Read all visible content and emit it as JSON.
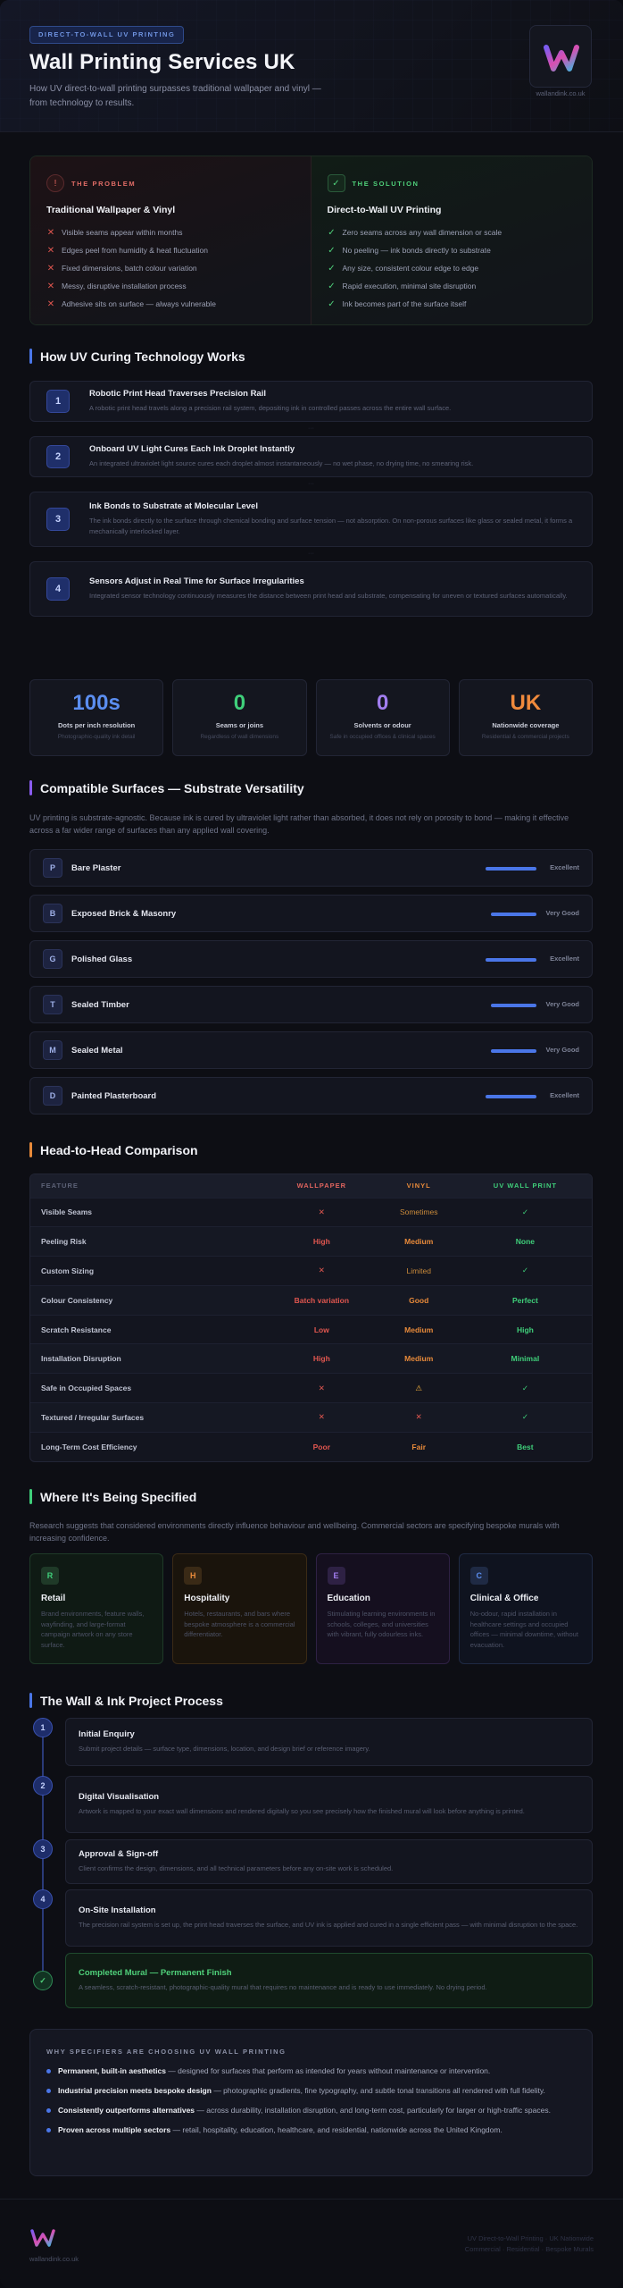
{
  "header": {
    "badge": "DIRECT-TO-WALL UV PRINTING",
    "title": "Wall Printing Services UK",
    "subtitle": "How UV direct-to-wall printing surpasses traditional wallpaper and vinyl — from technology to results.",
    "logo_url": "wallandink.co.uk",
    "logo_icon": "wallandink-logo"
  },
  "problem": {
    "tag": "THE PROBLEM",
    "title": "Traditional Wallpaper & Vinyl",
    "items": [
      "Visible seams appear within months",
      "Edges peel from humidity & heat fluctuation",
      "Fixed dimensions, batch colour variation",
      "Messy, disruptive installation process",
      "Adhesive sits on surface — always vulnerable"
    ]
  },
  "solution": {
    "tag": "THE SOLUTION",
    "title": "Direct-to-Wall UV Printing",
    "items": [
      "Zero seams across any wall dimension or scale",
      "No peeling — ink bonds directly to substrate",
      "Any size, consistent colour edge to edge",
      "Rapid execution, minimal site disruption",
      "Ink becomes part of the surface itself"
    ]
  },
  "how": {
    "heading": "How UV Curing Technology Works",
    "steps": [
      {
        "num": "1",
        "title": "Robotic Print Head Traverses Precision Rail",
        "desc": "A robotic print head travels along a precision rail system, depositing ink in controlled passes across the entire wall surface."
      },
      {
        "num": "2",
        "title": "Onboard UV Light Cures Each Ink Droplet Instantly",
        "desc": "An integrated ultraviolet light source cures each droplet almost instantaneously — no wet phase, no drying time, no smearing risk."
      },
      {
        "num": "3",
        "title": "Ink Bonds to Substrate at Molecular Level",
        "desc": "The ink bonds directly to the surface through chemical bonding and surface tension — not absorption. On non-porous surfaces like glass or sealed metal, it forms a mechanically interlocked layer."
      },
      {
        "num": "4",
        "title": "Sensors Adjust in Real Time for Surface Irregularities",
        "desc": "Integrated sensor technology continuously measures the distance between print head and substrate, compensating for uneven or textured surfaces automatically."
      }
    ]
  },
  "stats": [
    {
      "value": "100s",
      "label": "Dots per inch resolution",
      "sub": "Photographic-quality ink detail",
      "color": "#5b8ef0"
    },
    {
      "value": "0",
      "label": "Seams or joins",
      "sub": "Regardless of wall dimensions",
      "color": "#3fcf7a"
    },
    {
      "value": "0",
      "label": "Solvents or odour",
      "sub": "Safe in occupied offices & clinical spaces",
      "color": "#a27ef0"
    },
    {
      "value": "UK",
      "label": "Nationwide coverage",
      "sub": "Residential & commercial projects",
      "color": "#f08a3c"
    }
  ],
  "surfaces": {
    "heading": "Compatible Surfaces — Substrate Versatility",
    "desc": "UV printing is substrate-agnostic. Because ink is cured by ultraviolet light rather than absorbed, it does not rely on porosity to bond — making it effective across a far wider range of surfaces than any applied wall covering.",
    "items": [
      {
        "letter": "P",
        "name": "Bare Plaster",
        "rating": "Excellent",
        "level": 0.95
      },
      {
        "letter": "B",
        "name": "Exposed Brick & Masonry",
        "rating": "Very Good",
        "level": 0.85
      },
      {
        "letter": "G",
        "name": "Polished Glass",
        "rating": "Excellent",
        "level": 0.95
      },
      {
        "letter": "T",
        "name": "Sealed Timber",
        "rating": "Very Good",
        "level": 0.85
      },
      {
        "letter": "M",
        "name": "Sealed Metal",
        "rating": "Very Good",
        "level": 0.85
      },
      {
        "letter": "D",
        "name": "Painted Plasterboard",
        "rating": "Excellent",
        "level": 0.95
      }
    ]
  },
  "compare": {
    "heading": "Head-to-Head Comparison",
    "headers": [
      "FEATURE",
      "WALLPAPER",
      "VINYL",
      "UV WALL PRINT"
    ],
    "header_colors": [
      "#5d6277",
      "#e0645e",
      "#e88a3a",
      "#3fcf7a"
    ],
    "rows": [
      {
        "f": "Visible Seams",
        "w": "✕",
        "v": "Sometimes",
        "u": "✓",
        "wc": "#e0564f",
        "vc": "#c98a3a",
        "uc": "#3fcf7a"
      },
      {
        "f": "Peeling Risk",
        "w": "High",
        "v": "Medium",
        "u": "None",
        "wc": "#e0564f",
        "vc": "#e88a3a",
        "uc": "#3fcf7a"
      },
      {
        "f": "Custom Sizing",
        "w": "✕",
        "v": "Limited",
        "u": "✓",
        "wc": "#e0564f",
        "vc": "#c98a3a",
        "uc": "#3fcf7a"
      },
      {
        "f": "Colour Consistency",
        "w": "Batch variation",
        "v": "Good",
        "u": "Perfect",
        "wc": "#e0564f",
        "vc": "#e88a3a",
        "uc": "#3fcf7a"
      },
      {
        "f": "Scratch Resistance",
        "w": "Low",
        "v": "Medium",
        "u": "High",
        "wc": "#e0564f",
        "vc": "#e88a3a",
        "uc": "#3fcf7a"
      },
      {
        "f": "Installation Disruption",
        "w": "High",
        "v": "Medium",
        "u": "Minimal",
        "wc": "#e0564f",
        "vc": "#e88a3a",
        "uc": "#3fcf7a"
      },
      {
        "f": "Safe in Occupied Spaces",
        "w": "✕",
        "v": "⚠",
        "u": "✓",
        "wc": "#e0564f",
        "vc": "#e8a83a",
        "uc": "#3fcf7a"
      },
      {
        "f": "Textured / Irregular Surfaces",
        "w": "✕",
        "v": "✕",
        "u": "✓",
        "wc": "#e0564f",
        "vc": "#e0564f",
        "uc": "#3fcf7a"
      },
      {
        "f": "Long-Term Cost Efficiency",
        "w": "Poor",
        "v": "Fair",
        "u": "Best",
        "wc": "#e0564f",
        "vc": "#e88a3a",
        "uc": "#3fcf7a"
      }
    ]
  },
  "specified": {
    "heading": "Where It's Being Specified",
    "desc": "Research suggests that considered environments directly influence behaviour and wellbeing. Commercial sectors are specifying bespoke murals with increasing confidence.",
    "cards": [
      {
        "letter": "R",
        "title": "Retail",
        "desc": "Brand environments, feature walls, wayfinding, and large-format campaign artwork on any store surface.",
        "accent": "#3fcf7a",
        "bg": "#0f1a14",
        "border": "#1f3a28"
      },
      {
        "letter": "H",
        "title": "Hospitality",
        "desc": "Hotels, restaurants, and bars where bespoke atmosphere is a commercial differentiator.",
        "accent": "#e88a3a",
        "bg": "#1a140c",
        "border": "#3a2a16"
      },
      {
        "letter": "E",
        "title": "Education",
        "desc": "Stimulating learning environments in schools, colleges, and universities with vibrant, fully odourless inks.",
        "accent": "#a27ef0",
        "bg": "#150f1f",
        "border": "#2e2144"
      },
      {
        "letter": "C",
        "title": "Clinical & Office",
        "desc": "No-odour, rapid installation in healthcare settings and occupied offices — minimal downtime, without evacuation.",
        "accent": "#5b8ef0",
        "bg": "#0f131f",
        "border": "#1f2a44"
      }
    ]
  },
  "process": {
    "heading": "The Wall & Ink Project Process",
    "steps": [
      {
        "num": "1",
        "title": "Initial Enquiry",
        "desc": "Submit project details — surface type, dimensions, location, and design brief or reference imagery."
      },
      {
        "num": "2",
        "title": "Digital Visualisation",
        "desc": "Artwork is mapped to your exact wall dimensions and rendered digitally so you see precisely how the finished mural will look before anything is printed."
      },
      {
        "num": "3",
        "title": "Approval & Sign-off",
        "desc": "Client confirms the design, dimensions, and all technical parameters before any on-site work is scheduled."
      },
      {
        "num": "4",
        "title": "On-Site Installation",
        "desc": "The precision rail system is set up, the print head traverses the surface, and UV ink is applied and cured in a single efficient pass — with minimal disruption to the space."
      },
      {
        "num": "✓",
        "title": "Completed Mural — Permanent Finish",
        "desc": "A seamless, scratch-resistant, photographic-quality mural that requires no maintenance and is ready to use immediately. No drying period."
      }
    ]
  },
  "why": {
    "heading": "WHY SPECIFIERS ARE CHOOSING UV WALL PRINTING",
    "items": [
      {
        "b": "Permanent, built-in aesthetics",
        "t": " — designed for surfaces that perform as intended for years without maintenance or intervention."
      },
      {
        "b": "Industrial precision meets bespoke design",
        "t": " — photographic gradients, fine typography, and subtle tonal transitions all rendered with full fidelity."
      },
      {
        "b": "Consistently outperforms alternatives",
        "t": " — across durability, installation disruption, and long-term cost, particularly for larger or high-traffic spaces."
      },
      {
        "b": "Proven across multiple sectors",
        "t": " — retail, hospitality, education, healthcare, and residential, nationwide across the United Kingdom."
      }
    ]
  },
  "footer": {
    "url": "wallandink.co.uk",
    "right_1": "UV Direct-to-Wall Printing · UK Nationwide",
    "right_2": "Commercial · Residential · Bespoke Murals"
  }
}
